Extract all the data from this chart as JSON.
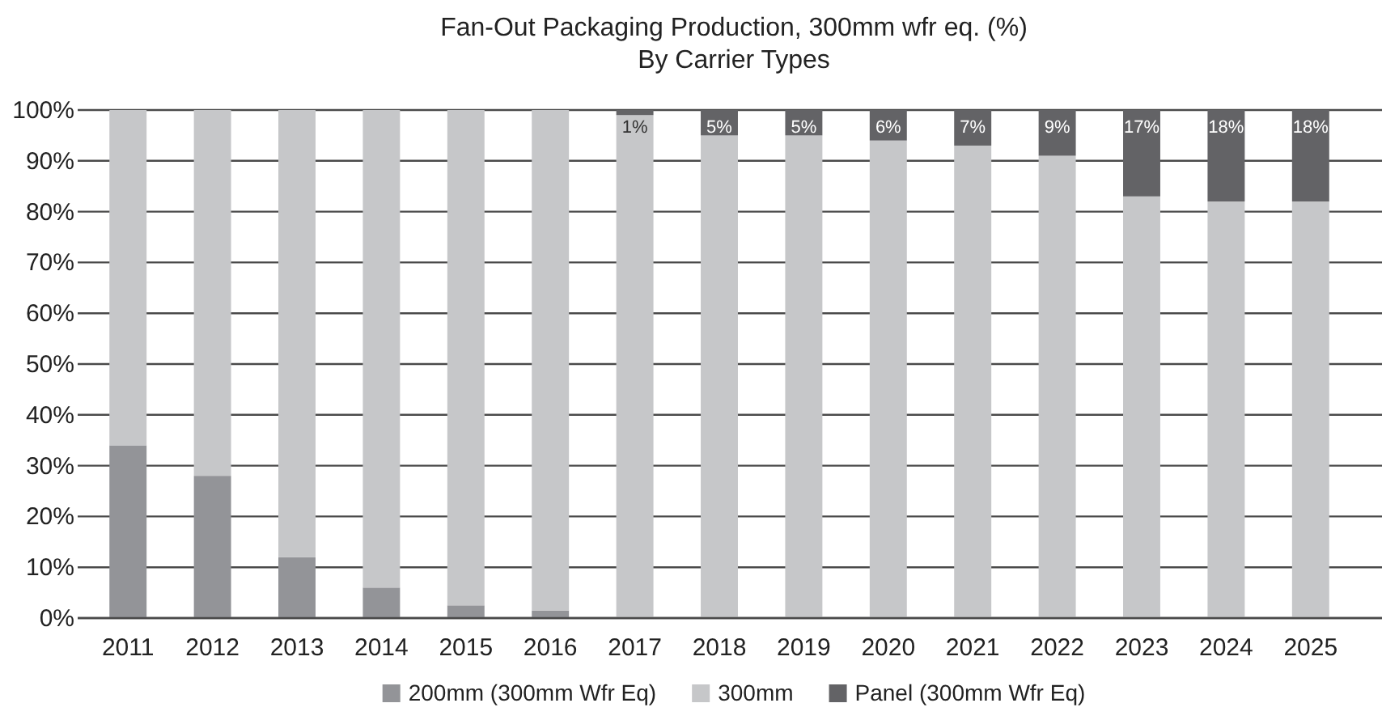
{
  "chart_data": {
    "type": "bar",
    "stacked": true,
    "title": "Fan-Out Packaging Production, 300mm wfr eq. (%)",
    "subtitle": "By Carrier Types",
    "categories": [
      "2011",
      "2012",
      "2013",
      "2014",
      "2015",
      "2016",
      "2017",
      "2018",
      "2019",
      "2020",
      "2021",
      "2022",
      "2023",
      "2024",
      "2025"
    ],
    "series": [
      {
        "name": "200mm (300mm Wfr Eq)",
        "color": "#939498",
        "values": [
          34,
          28,
          12,
          6,
          2.5,
          1.5,
          0,
          0,
          0,
          0,
          0,
          0,
          0,
          0,
          0
        ]
      },
      {
        "name": "300mm",
        "color": "#c6c7c9",
        "values": [
          66,
          72,
          88,
          94,
          97.5,
          98.5,
          99,
          95,
          95,
          94,
          93,
          91,
          83,
          82,
          82
        ]
      },
      {
        "name": "Panel (300mm Wfr Eq)",
        "color": "#636366",
        "values": [
          0,
          0,
          0,
          0,
          0,
          0,
          1,
          5,
          5,
          6,
          7,
          9,
          17,
          18,
          18
        ],
        "value_labels": [
          null,
          null,
          null,
          null,
          null,
          null,
          "1%",
          "5%",
          "5%",
          "6%",
          "7%",
          "9%",
          "17%",
          "18%",
          "18%"
        ]
      }
    ],
    "ylim": [
      0,
      100
    ],
    "yticks": [
      {
        "value": 0,
        "label": "0%"
      },
      {
        "value": 10,
        "label": "10%"
      },
      {
        "value": 20,
        "label": "20%"
      },
      {
        "value": 30,
        "label": "30%"
      },
      {
        "value": 40,
        "label": "40%"
      },
      {
        "value": 50,
        "label": "50%"
      },
      {
        "value": 60,
        "label": "60%"
      },
      {
        "value": 70,
        "label": "70%"
      },
      {
        "value": 80,
        "label": "80%"
      },
      {
        "value": 90,
        "label": "90%"
      },
      {
        "value": 100,
        "label": "100%"
      }
    ],
    "grid": "y",
    "legend": "bottom"
  }
}
